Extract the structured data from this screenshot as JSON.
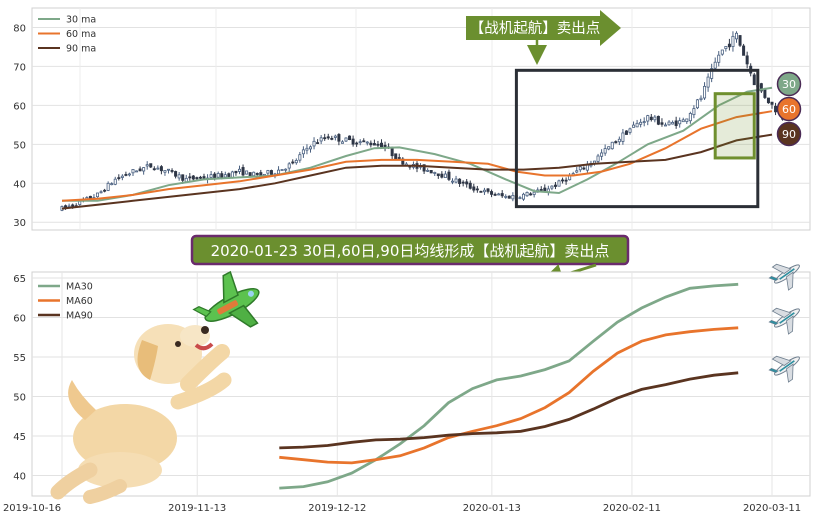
{
  "top_legend": [
    "30 ma",
    "60 ma",
    "90 ma"
  ],
  "bottom_legend": [
    "MA30",
    "MA60",
    "MA90"
  ],
  "colors": {
    "ma30": "#7ea889",
    "ma60": "#e8742c",
    "ma90": "#5a3420",
    "up": "#4a6080",
    "down": "#2e3646",
    "banner_fill": "#6b8f2f",
    "box_outline": "#2b2f36",
    "green_box": "#6f8f2e",
    "caption_fill": "#6b8f2f",
    "caption_border": "#6a2b6d"
  },
  "banner_text": "【战机起航】卖出点",
  "caption_text": "2020-01-23 30日,60日,90日均线形成【战机起航】卖出点",
  "badges": [
    "30",
    "60",
    "90"
  ],
  "plane_icons": [
    "airplane-icon",
    "airplane-icon",
    "airplane-icon"
  ],
  "chart_data": [
    {
      "type": "candlestick",
      "title": "",
      "ylim": [
        28,
        85
      ],
      "yticks": [
        30,
        40,
        50,
        60,
        70,
        80
      ],
      "xlim": [
        0,
        200
      ],
      "grid": true,
      "legend_placement": "top-left",
      "series": [
        {
          "name": "30 ma",
          "ma": 30
        },
        {
          "name": "60 ma",
          "ma": 60
        },
        {
          "name": "90 ma",
          "ma": 90
        }
      ],
      "price_path": [
        [
          0,
          33.5
        ],
        [
          5,
          35
        ],
        [
          10,
          37
        ],
        [
          15,
          41
        ],
        [
          20,
          43
        ],
        [
          25,
          44.5
        ],
        [
          30,
          43
        ],
        [
          35,
          41
        ],
        [
          40,
          41.5
        ],
        [
          45,
          42
        ],
        [
          50,
          43
        ],
        [
          55,
          42
        ],
        [
          60,
          43
        ],
        [
          65,
          45
        ],
        [
          70,
          50
        ],
        [
          75,
          52
        ],
        [
          80,
          51
        ],
        [
          85,
          50.5
        ],
        [
          90,
          50
        ],
        [
          95,
          46
        ],
        [
          100,
          44
        ],
        [
          105,
          43
        ],
        [
          110,
          41
        ],
        [
          115,
          39
        ],
        [
          120,
          37.5
        ],
        [
          125,
          36.5
        ],
        [
          130,
          37
        ],
        [
          135,
          38
        ],
        [
          140,
          40
        ],
        [
          145,
          43
        ],
        [
          150,
          46
        ],
        [
          155,
          50
        ],
        [
          160,
          54
        ],
        [
          165,
          57
        ],
        [
          170,
          55
        ],
        [
          175,
          56
        ],
        [
          180,
          62
        ],
        [
          185,
          73
        ],
        [
          190,
          78
        ],
        [
          195,
          66
        ],
        [
          200,
          60
        ],
        [
          203,
          57
        ]
      ],
      "ma_paths": {
        "30": [
          [
            0,
            35.5
          ],
          [
            10,
            35.5
          ],
          [
            20,
            37
          ],
          [
            30,
            39.5
          ],
          [
            40,
            41
          ],
          [
            50,
            41.5
          ],
          [
            60,
            42
          ],
          [
            70,
            44
          ],
          [
            80,
            47
          ],
          [
            88,
            49
          ],
          [
            95,
            49.2
          ],
          [
            105,
            47.5
          ],
          [
            115,
            45
          ],
          [
            125,
            41
          ],
          [
            133,
            38
          ],
          [
            140,
            37.5
          ],
          [
            148,
            41
          ],
          [
            156,
            45
          ],
          [
            165,
            50
          ],
          [
            175,
            53.5
          ],
          [
            185,
            60
          ],
          [
            193,
            63.5
          ],
          [
            200,
            64.5
          ]
        ],
        "60": [
          [
            0,
            35.5
          ],
          [
            10,
            36
          ],
          [
            20,
            37
          ],
          [
            30,
            38.5
          ],
          [
            40,
            39.5
          ],
          [
            50,
            40.5
          ],
          [
            60,
            42
          ],
          [
            70,
            43.5
          ],
          [
            80,
            45.5
          ],
          [
            90,
            46
          ],
          [
            100,
            46
          ],
          [
            110,
            45.5
          ],
          [
            120,
            45
          ],
          [
            128,
            43
          ],
          [
            136,
            42
          ],
          [
            144,
            42
          ],
          [
            152,
            43
          ],
          [
            160,
            45
          ],
          [
            170,
            49
          ],
          [
            180,
            54
          ],
          [
            190,
            57
          ],
          [
            200,
            58.5
          ]
        ],
        "90": [
          [
            0,
            33.5
          ],
          [
            10,
            34.5
          ],
          [
            20,
            35.5
          ],
          [
            30,
            36.5
          ],
          [
            40,
            37.5
          ],
          [
            50,
            38.5
          ],
          [
            60,
            40
          ],
          [
            70,
            42
          ],
          [
            80,
            44
          ],
          [
            90,
            44.5
          ],
          [
            100,
            44.5
          ],
          [
            110,
            44
          ],
          [
            120,
            43.5
          ],
          [
            130,
            43.5
          ],
          [
            140,
            44
          ],
          [
            150,
            45
          ],
          [
            160,
            45.5
          ],
          [
            170,
            46
          ],
          [
            180,
            48
          ],
          [
            190,
            51
          ],
          [
            200,
            52.5
          ]
        ]
      },
      "annotation_box": {
        "x_range": [
          128,
          196
        ],
        "y_range": [
          34,
          69
        ]
      },
      "highlight_box": {
        "x_range": [
          184,
          195
        ],
        "y_range": [
          46.5,
          63
        ]
      },
      "end_labels": [
        "30",
        "60",
        "90"
      ]
    },
    {
      "type": "line",
      "title": "",
      "xlabel": "",
      "ylabel": "",
      "ylim": [
        37,
        65.5
      ],
      "yticks": [
        40,
        45,
        50,
        55,
        60,
        65
      ],
      "x_ticklabels": [
        "2019-10-16",
        "2019-11-13",
        "2019-12-12",
        "2020-01-13",
        "2020-02-11",
        "2020-03-11"
      ],
      "x_tick_days": [
        0,
        28,
        57,
        89,
        118,
        147
      ],
      "xlim": [
        -5,
        155
      ],
      "grid": true,
      "legend_placement": "top-left",
      "series": [
        {
          "name": "MA30",
          "points": [
            [
              45,
              38.4
            ],
            [
              50,
              38.6
            ],
            [
              55,
              39.2
            ],
            [
              60,
              40.3
            ],
            [
              65,
              42
            ],
            [
              70,
              44
            ],
            [
              75,
              46.3
            ],
            [
              80,
              49.2
            ],
            [
              85,
              51
            ],
            [
              90,
              52.1
            ],
            [
              95,
              52.6
            ],
            [
              100,
              53.4
            ],
            [
              105,
              54.5
            ],
            [
              110,
              57
            ],
            [
              115,
              59.4
            ],
            [
              120,
              61.2
            ],
            [
              125,
              62.6
            ],
            [
              130,
              63.7
            ],
            [
              135,
              64
            ],
            [
              140,
              64.2
            ]
          ]
        },
        {
          "name": "MA60",
          "points": [
            [
              45,
              42.3
            ],
            [
              50,
              42
            ],
            [
              55,
              41.7
            ],
            [
              60,
              41.6
            ],
            [
              65,
              42
            ],
            [
              70,
              42.5
            ],
            [
              75,
              43.5
            ],
            [
              80,
              44.8
            ],
            [
              85,
              45.6
            ],
            [
              90,
              46.3
            ],
            [
              95,
              47.2
            ],
            [
              100,
              48.6
            ],
            [
              105,
              50.5
            ],
            [
              110,
              53.2
            ],
            [
              115,
              55.5
            ],
            [
              120,
              57
            ],
            [
              125,
              57.8
            ],
            [
              130,
              58.2
            ],
            [
              135,
              58.5
            ],
            [
              140,
              58.7
            ]
          ]
        },
        {
          "name": "MA90",
          "points": [
            [
              45,
              43.5
            ],
            [
              50,
              43.6
            ],
            [
              55,
              43.8
            ],
            [
              60,
              44.2
            ],
            [
              65,
              44.5
            ],
            [
              70,
              44.6
            ],
            [
              75,
              44.8
            ],
            [
              80,
              45.1
            ],
            [
              85,
              45.3
            ],
            [
              90,
              45.4
            ],
            [
              95,
              45.6
            ],
            [
              100,
              46.2
            ],
            [
              105,
              47.1
            ],
            [
              110,
              48.4
            ],
            [
              115,
              49.8
            ],
            [
              120,
              50.9
            ],
            [
              125,
              51.5
            ],
            [
              130,
              52.2
            ],
            [
              135,
              52.7
            ],
            [
              140,
              53
            ]
          ]
        }
      ]
    }
  ]
}
